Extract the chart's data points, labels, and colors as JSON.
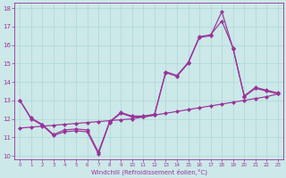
{
  "xlabel": "Windchill (Refroidissement éolien,°C)",
  "xlim": [
    -0.5,
    23.5
  ],
  "ylim": [
    9.8,
    18.3
  ],
  "xticks": [
    0,
    1,
    2,
    3,
    4,
    5,
    6,
    7,
    8,
    9,
    10,
    11,
    12,
    13,
    14,
    15,
    16,
    17,
    18,
    19,
    20,
    21,
    22,
    23
  ],
  "yticks": [
    10,
    11,
    12,
    13,
    14,
    15,
    16,
    17,
    18
  ],
  "bg": "#cce8e8",
  "lc": "#993399",
  "gc": "#aad8d8",
  "line1_x": [
    0,
    1,
    2,
    3,
    4,
    5,
    6,
    7,
    8,
    9,
    10,
    11,
    12,
    13,
    14,
    15,
    16,
    17,
    18,
    19,
    20,
    21,
    22,
    23
  ],
  "line1_y": [
    13.0,
    12.0,
    11.65,
    11.1,
    11.3,
    11.35,
    11.3,
    10.1,
    11.8,
    12.3,
    12.1,
    12.1,
    12.2,
    14.5,
    14.3,
    15.0,
    16.4,
    16.5,
    17.8,
    15.8,
    13.2,
    13.65,
    13.5,
    13.35
  ],
  "line2_x": [
    0,
    1,
    2,
    3,
    4,
    5,
    6,
    7,
    8,
    9,
    10,
    11,
    12,
    13,
    14,
    15,
    16,
    17,
    18,
    19,
    20,
    21,
    22,
    23
  ],
  "line2_y": [
    13.0,
    12.05,
    11.7,
    11.15,
    11.4,
    11.45,
    11.4,
    10.2,
    11.85,
    12.35,
    12.15,
    12.15,
    12.25,
    14.55,
    14.35,
    15.05,
    16.45,
    16.55,
    17.3,
    15.85,
    13.25,
    13.7,
    13.55,
    13.4
  ],
  "line3_x": [
    0,
    1,
    2,
    3,
    4,
    5,
    6,
    7,
    8,
    9,
    10,
    11,
    12,
    13,
    14,
    15,
    16,
    17,
    18,
    19,
    20,
    21,
    22,
    23
  ],
  "line3_y": [
    11.5,
    11.55,
    11.6,
    11.65,
    11.7,
    11.75,
    11.8,
    11.85,
    11.9,
    11.95,
    12.0,
    12.1,
    12.2,
    12.3,
    12.4,
    12.5,
    12.6,
    12.7,
    12.8,
    12.9,
    13.0,
    13.1,
    13.2,
    13.35
  ]
}
